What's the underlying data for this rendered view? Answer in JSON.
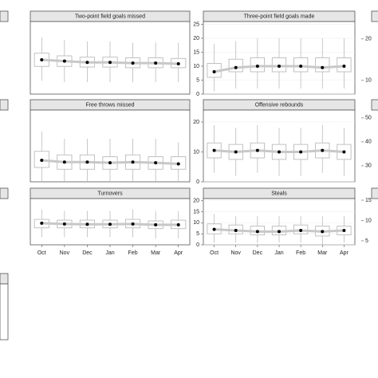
{
  "chart_data": [
    {
      "type": "box",
      "title": "Two-point field goals missed",
      "ylim": [
        5,
        60
      ],
      "q1": [
        26,
        26,
        25.5,
        25.5,
        25,
        25,
        25
      ],
      "q3": [
        36,
        34,
        33,
        33,
        32.5,
        32.5,
        32
      ],
      "whisker_low": [
        15,
        14,
        14,
        14,
        14,
        14,
        14
      ],
      "whisker_high": [
        48,
        46,
        45,
        45,
        44,
        44,
        44
      ],
      "mean": [
        31,
        30,
        29,
        29,
        28.5,
        28.5,
        28
      ]
    },
    {
      "type": "box",
      "title": "Three-point field goals made",
      "ylim": [
        0,
        26
      ],
      "yticks": [
        0,
        5,
        10,
        15,
        20,
        25
      ],
      "q1": [
        6,
        8,
        8,
        8,
        8,
        8,
        8
      ],
      "q3": [
        11,
        12.5,
        13,
        13,
        13,
        13,
        13
      ],
      "whisker_low": [
        1,
        2,
        2,
        2,
        2,
        2,
        2
      ],
      "whisker_high": [
        18,
        19,
        20,
        20,
        20,
        20,
        20
      ],
      "mean": [
        8,
        9.5,
        10,
        10,
        10,
        9.5,
        10
      ]
    },
    {
      "type": "box",
      "ylim": [
        6.7,
        24.2
      ],
      "yticks": [
        10,
        20
      ]
    },
    {
      "type": "box",
      "title": "Free throws missed",
      "ylim": [
        0,
        20
      ],
      "q1": [
        4,
        3.5,
        3.5,
        3.5,
        3.5,
        3.5,
        3.5
      ],
      "q3": [
        8.5,
        7.5,
        7.5,
        7,
        7.5,
        7,
        7
      ],
      "whisker_low": [
        0,
        0,
        0,
        0,
        0,
        0,
        0
      ],
      "whisker_high": [
        14,
        12,
        12,
        12,
        12,
        12,
        11
      ],
      "mean": [
        6,
        5.5,
        5.5,
        5.3,
        5.5,
        5.3,
        5
      ]
    },
    {
      "type": "box",
      "title": "Offensive rebounds",
      "ylim": [
        0,
        24
      ],
      "yticks": [
        0,
        10,
        20
      ],
      "q1": [
        8,
        7.5,
        8,
        7.5,
        7.5,
        8,
        7.5
      ],
      "q3": [
        13,
        12.5,
        13,
        12.5,
        12.5,
        13,
        12.5
      ],
      "whisker_low": [
        3,
        2,
        3,
        2,
        2,
        3,
        2
      ],
      "whisker_high": [
        19,
        18,
        19,
        18,
        18,
        19,
        18
      ],
      "mean": [
        10.5,
        10,
        10.5,
        10,
        10,
        10.5,
        10
      ]
    },
    {
      "type": "box",
      "ylim": [
        23.3,
        53.3
      ],
      "yticks": [
        30,
        40,
        50
      ]
    },
    {
      "type": "box",
      "title": "Turnovers",
      "ylim": [
        0,
        30
      ],
      "categories": [
        "Oct",
        "Nov",
        "Dec",
        "Jan",
        "Feb",
        "Mar",
        "Apr"
      ],
      "q1": [
        11,
        11,
        11,
        11,
        11,
        10.5,
        10.5
      ],
      "q3": [
        16.5,
        16,
        16,
        16,
        16.5,
        15.5,
        16
      ],
      "whisker_low": [
        5,
        5,
        5,
        5,
        5,
        4,
        4
      ],
      "whisker_high": [
        23,
        22,
        22,
        22,
        23,
        22,
        22
      ],
      "mean": [
        14,
        13.5,
        13.3,
        13.3,
        13.5,
        13,
        13
      ]
    },
    {
      "type": "box",
      "title": "Steals",
      "ylim": [
        0,
        21
      ],
      "yticks": [
        0,
        5,
        10,
        15,
        20
      ],
      "categories": [
        "Oct",
        "Nov",
        "Dec",
        "Jan",
        "Feb",
        "Mar",
        "Apr"
      ],
      "q1": [
        5,
        5,
        4.5,
        4.5,
        5,
        4,
        4.5
      ],
      "q3": [
        9.5,
        9,
        8.5,
        8.5,
        9,
        8.5,
        8.5
      ],
      "whisker_low": [
        1,
        1,
        1,
        1,
        1,
        0,
        1
      ],
      "whisker_high": [
        14,
        13,
        13,
        13,
        13,
        13,
        13
      ],
      "mean": [
        7,
        6.5,
        6,
        6,
        6.5,
        6,
        6.5
      ]
    },
    {
      "type": "box",
      "ylim": [
        4,
        15.4
      ],
      "yticks": [
        5,
        10,
        15
      ]
    }
  ]
}
